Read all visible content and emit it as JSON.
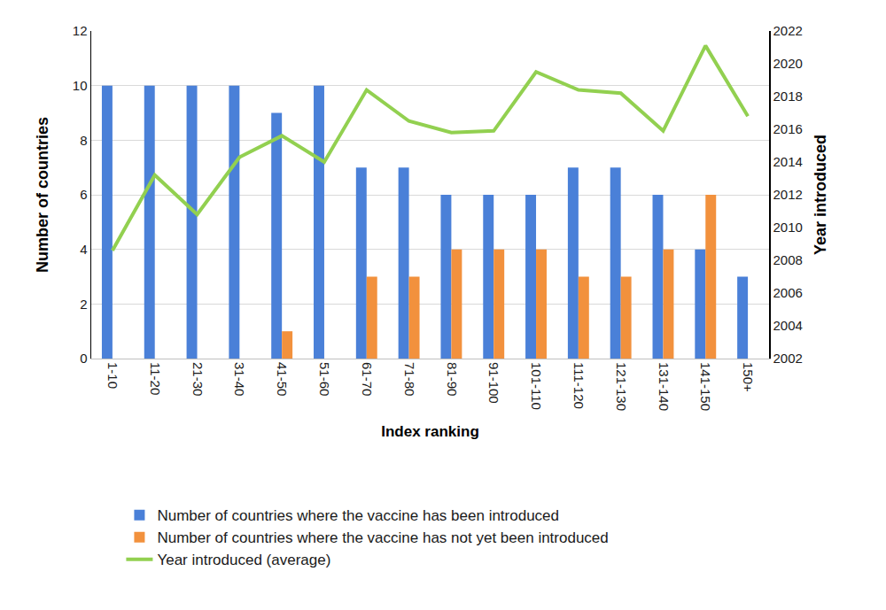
{
  "chart_data": {
    "type": "bar",
    "x_label": "Index ranking",
    "y_label": "Number of countries",
    "y2_label": "Year introduced",
    "categories": [
      "1-10",
      "11-20",
      "21-30",
      "31-40",
      "41-50",
      "51-60",
      "61-70",
      "71-80",
      "81-90",
      "91-100",
      "101-110",
      "111-120",
      "121-130",
      "131-140",
      "141-150",
      "150+"
    ],
    "series": [
      {
        "name": "Number of countries where the vaccine has been introduced",
        "type": "bar",
        "color": "#4a80d8",
        "values": [
          10,
          10,
          10,
          10,
          9,
          10,
          7,
          7,
          6,
          6,
          6,
          7,
          7,
          6,
          4,
          3
        ]
      },
      {
        "name": "Number of countries where the vaccine has not yet been introduced",
        "type": "bar",
        "color": "#f2913d",
        "values": [
          0,
          0,
          0,
          0,
          1,
          0,
          3,
          3,
          4,
          4,
          4,
          3,
          3,
          4,
          6,
          0
        ]
      },
      {
        "name": "Year introduced (average)",
        "type": "line",
        "axis": "y2",
        "color": "#92d050",
        "values": [
          2008.6,
          2013.2,
          2010.8,
          2014.3,
          2015.6,
          2014.0,
          2018.4,
          2016.5,
          2015.8,
          2015.9,
          2019.5,
          2018.4,
          2018.2,
          2015.9,
          2021.1,
          2016.8
        ]
      }
    ],
    "ylim": [
      0,
      12
    ],
    "yticks": [
      0,
      2,
      4,
      6,
      8,
      10,
      12
    ],
    "y2lim": [
      2002,
      2022
    ],
    "y2ticks": [
      2002,
      2004,
      2006,
      2008,
      2010,
      2012,
      2014,
      2016,
      2018,
      2020,
      2022
    ],
    "grid": true,
    "legend": "bottom"
  }
}
